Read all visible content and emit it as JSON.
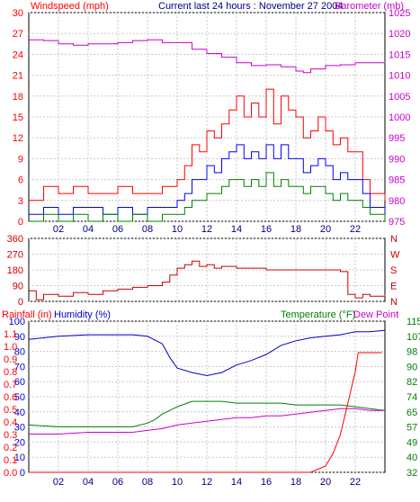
{
  "header": {
    "windspeed_label": "Windspeed (mph)",
    "title": "Current last 24 hours : November 27 2004",
    "barometer_label": "Barometer (mb)"
  },
  "bottom_header": {
    "rainfall_label": "Rainfall (in)",
    "humidity_label": "Humidity (%)",
    "temperature_label": "Temperature (°F)",
    "dewpoint_label": "Dew Point"
  },
  "colors": {
    "windspeed": "#ff0000",
    "gust": "#ff0000",
    "average_wind": "#0000ff",
    "min_wind": "#008000",
    "barometer": "#cc00cc",
    "direction": "#cc0000",
    "humidity": "#0000cc",
    "temperature": "#008000",
    "dewpoint": "#cc00cc",
    "rainfall": "#ff0000"
  },
  "chart_data": [
    {
      "type": "line",
      "name": "wind_and_barometer",
      "x_ticks": [
        "02",
        "04",
        "06",
        "08",
        "10",
        "12",
        "14",
        "16",
        "18",
        "20",
        "22"
      ],
      "x_range": [
        0,
        24
      ],
      "y_left": {
        "label": "Windspeed (mph)",
        "range": [
          0,
          30
        ],
        "ticks": [
          "0",
          "3",
          "6",
          "9",
          "12",
          "15",
          "18",
          "21",
          "24",
          "27",
          "30"
        ]
      },
      "y_right": {
        "label": "Barometer (mb)",
        "range": [
          975,
          1025
        ],
        "ticks": [
          "975",
          "980",
          "985",
          "990",
          "995",
          "1000",
          "1005",
          "1010",
          "1015",
          "1020",
          "1025"
        ]
      },
      "series": [
        {
          "axis": "right",
          "x": [
            0,
            1,
            2,
            3,
            4,
            5,
            6,
            7,
            8,
            9,
            10,
            11,
            12,
            13,
            14,
            15,
            16,
            17,
            18,
            18.5,
            19,
            20,
            21,
            22,
            23,
            24
          ],
          "y": [
            1018.5,
            1018.3,
            1017.5,
            1017.2,
            1017.5,
            1017.5,
            1017.8,
            1018.3,
            1018.5,
            1017.8,
            1017.8,
            1016.2,
            1015.2,
            1014.3,
            1013,
            1012.3,
            1012.5,
            1012,
            1011,
            1010.6,
            1011.5,
            1012.3,
            1012.5,
            1013,
            1013,
            1013.2
          ]
        },
        {
          "axis": "left",
          "x": [
            0,
            1,
            2,
            3,
            4,
            5,
            6,
            7,
            8,
            9,
            10,
            10.5,
            11,
            11.5,
            12,
            12.5,
            13,
            13.5,
            14,
            14.5,
            15,
            15.5,
            16,
            16.5,
            17,
            17.5,
            18,
            18.5,
            19,
            19.5,
            20,
            20.5,
            21,
            21.5,
            22,
            22.5,
            23,
            24
          ],
          "y": [
            3,
            5,
            4,
            5,
            4,
            4,
            5,
            4,
            4,
            5,
            6,
            8,
            11,
            10,
            13,
            12,
            14,
            16,
            18,
            15,
            17,
            15,
            19,
            14,
            18,
            16,
            15,
            12,
            13,
            15,
            13,
            11,
            12,
            10,
            10,
            6,
            4,
            3
          ]
        },
        {
          "axis": "left",
          "x": [
            0,
            1,
            2,
            3,
            4,
            5,
            6,
            7,
            8,
            9,
            10,
            10.5,
            11,
            11.5,
            12,
            12.5,
            13,
            13.5,
            14,
            14.5,
            15,
            15.5,
            16,
            16.5,
            17,
            17.5,
            18,
            18.5,
            19,
            19.5,
            20,
            20.5,
            21,
            21.5,
            22,
            22.5,
            23,
            24
          ],
          "y": [
            1,
            2,
            1,
            2,
            2,
            1,
            2,
            1,
            2,
            2,
            3,
            4,
            6,
            6,
            8,
            7,
            9,
            10,
            11,
            9,
            10,
            9,
            11,
            9,
            11,
            9,
            9,
            7,
            8,
            9,
            8,
            6,
            7,
            6,
            6,
            4,
            2,
            1
          ]
        },
        {
          "axis": "left",
          "x": [
            0,
            1,
            2,
            3,
            4,
            5,
            6,
            7,
            8,
            9,
            10,
            10.5,
            11,
            11.5,
            12,
            12.5,
            13,
            13.5,
            14,
            14.5,
            15,
            15.5,
            16,
            16.5,
            17,
            17.5,
            18,
            18.5,
            19,
            19.5,
            20,
            20.5,
            21,
            21.5,
            22,
            22.5,
            23,
            24
          ],
          "y": [
            0,
            1,
            0,
            1,
            0,
            1,
            0,
            1,
            0,
            1,
            1,
            2,
            3,
            3,
            4,
            4,
            5,
            6,
            6,
            5,
            6,
            5,
            7,
            5,
            6,
            5,
            5,
            4,
            5,
            5,
            4,
            3,
            4,
            3,
            3,
            2,
            1,
            0
          ]
        }
      ]
    },
    {
      "type": "line",
      "name": "wind_direction",
      "x_range": [
        0,
        24
      ],
      "y_left": {
        "range": [
          0,
          360
        ],
        "ticks": [
          "0",
          "90",
          "180",
          "270",
          "360"
        ]
      },
      "y_right": {
        "ticks": [
          "N",
          "E",
          "S",
          "W",
          "N"
        ]
      },
      "series": [
        {
          "x": [
            0,
            0.5,
            1,
            2,
            3,
            4,
            5,
            6,
            7,
            8,
            9,
            9.5,
            10,
            10.5,
            11,
            11.5,
            12,
            12.5,
            13,
            14,
            15,
            16,
            17,
            18,
            19,
            20,
            21,
            21.5,
            22,
            22.5,
            23,
            24
          ],
          "y": [
            60,
            10,
            40,
            30,
            50,
            40,
            60,
            70,
            80,
            90,
            110,
            150,
            190,
            210,
            230,
            200,
            210,
            190,
            200,
            190,
            190,
            180,
            180,
            180,
            180,
            180,
            170,
            40,
            20,
            40,
            30,
            40
          ]
        }
      ]
    },
    {
      "type": "line",
      "name": "humidity_temperature_rain",
      "x_ticks": [
        "02",
        "04",
        "06",
        "08",
        "10",
        "12",
        "14",
        "16",
        "18",
        "20",
        "22"
      ],
      "x_range": [
        0,
        24
      ],
      "y_left_humidity": {
        "label": "Humidity (%)",
        "range": [
          0,
          100
        ],
        "ticks": [
          "0",
          "10",
          "20",
          "30",
          "40",
          "50",
          "60",
          "70",
          "80",
          "90",
          "100"
        ]
      },
      "y_left_rain": {
        "label": "Rainfall (in)",
        "range": [
          0,
          1.2
        ],
        "ticks": [
          "0.0",
          "0.1",
          "0.2",
          "0.3",
          "0.4",
          "0.5",
          "0.6",
          "0.7",
          "0.8",
          "0.9",
          "1.0",
          "1.1"
        ]
      },
      "y_right": {
        "label": "Temperature (°F)",
        "range": [
          32,
          115
        ],
        "ticks": [
          "32",
          "40",
          "49",
          "57",
          "65",
          "74",
          "82",
          "90",
          "98",
          "107",
          "115"
        ]
      },
      "series": [
        {
          "axis": "humidity",
          "x": [
            0,
            2,
            4,
            5,
            6,
            7,
            8,
            9,
            9.5,
            10,
            11,
            12,
            13,
            14,
            15,
            16,
            17,
            18,
            19,
            20,
            21,
            22,
            23,
            24
          ],
          "y": [
            88,
            90,
            91,
            91,
            91,
            91,
            90,
            85,
            76,
            69,
            66,
            64,
            66,
            71,
            74,
            78,
            84,
            87,
            89,
            90,
            91,
            93,
            93,
            94
          ]
        },
        {
          "axis": "temperature",
          "x": [
            0,
            2,
            4,
            6,
            7,
            8,
            8.5,
            9,
            9.5,
            10,
            11,
            12,
            13,
            14,
            15,
            16,
            17,
            18,
            19,
            20,
            21,
            22,
            23,
            24
          ],
          "y": [
            58,
            57,
            57,
            57,
            57,
            59,
            61,
            64,
            66,
            68,
            71,
            71,
            71,
            70,
            70,
            70,
            70,
            69,
            69,
            69,
            69,
            68,
            67,
            66
          ]
        },
        {
          "axis": "temperature",
          "x": [
            0,
            2,
            4,
            6,
            7,
            8,
            9,
            10,
            11,
            12,
            13,
            14,
            15,
            16,
            17,
            18,
            19,
            20,
            21,
            22,
            23,
            24
          ],
          "y": [
            53,
            53,
            54,
            54,
            54,
            55,
            56,
            58,
            59,
            60,
            61,
            62,
            62,
            63,
            63,
            64,
            65,
            66,
            67,
            67,
            66,
            66
          ]
        },
        {
          "axis": "rain",
          "x": [
            0,
            19,
            20,
            20.5,
            21,
            21.5,
            22,
            22.2,
            23.8
          ],
          "y": [
            0,
            0,
            0.05,
            0.15,
            0.3,
            0.55,
            0.8,
            0.95,
            0.95
          ]
        }
      ]
    }
  ]
}
